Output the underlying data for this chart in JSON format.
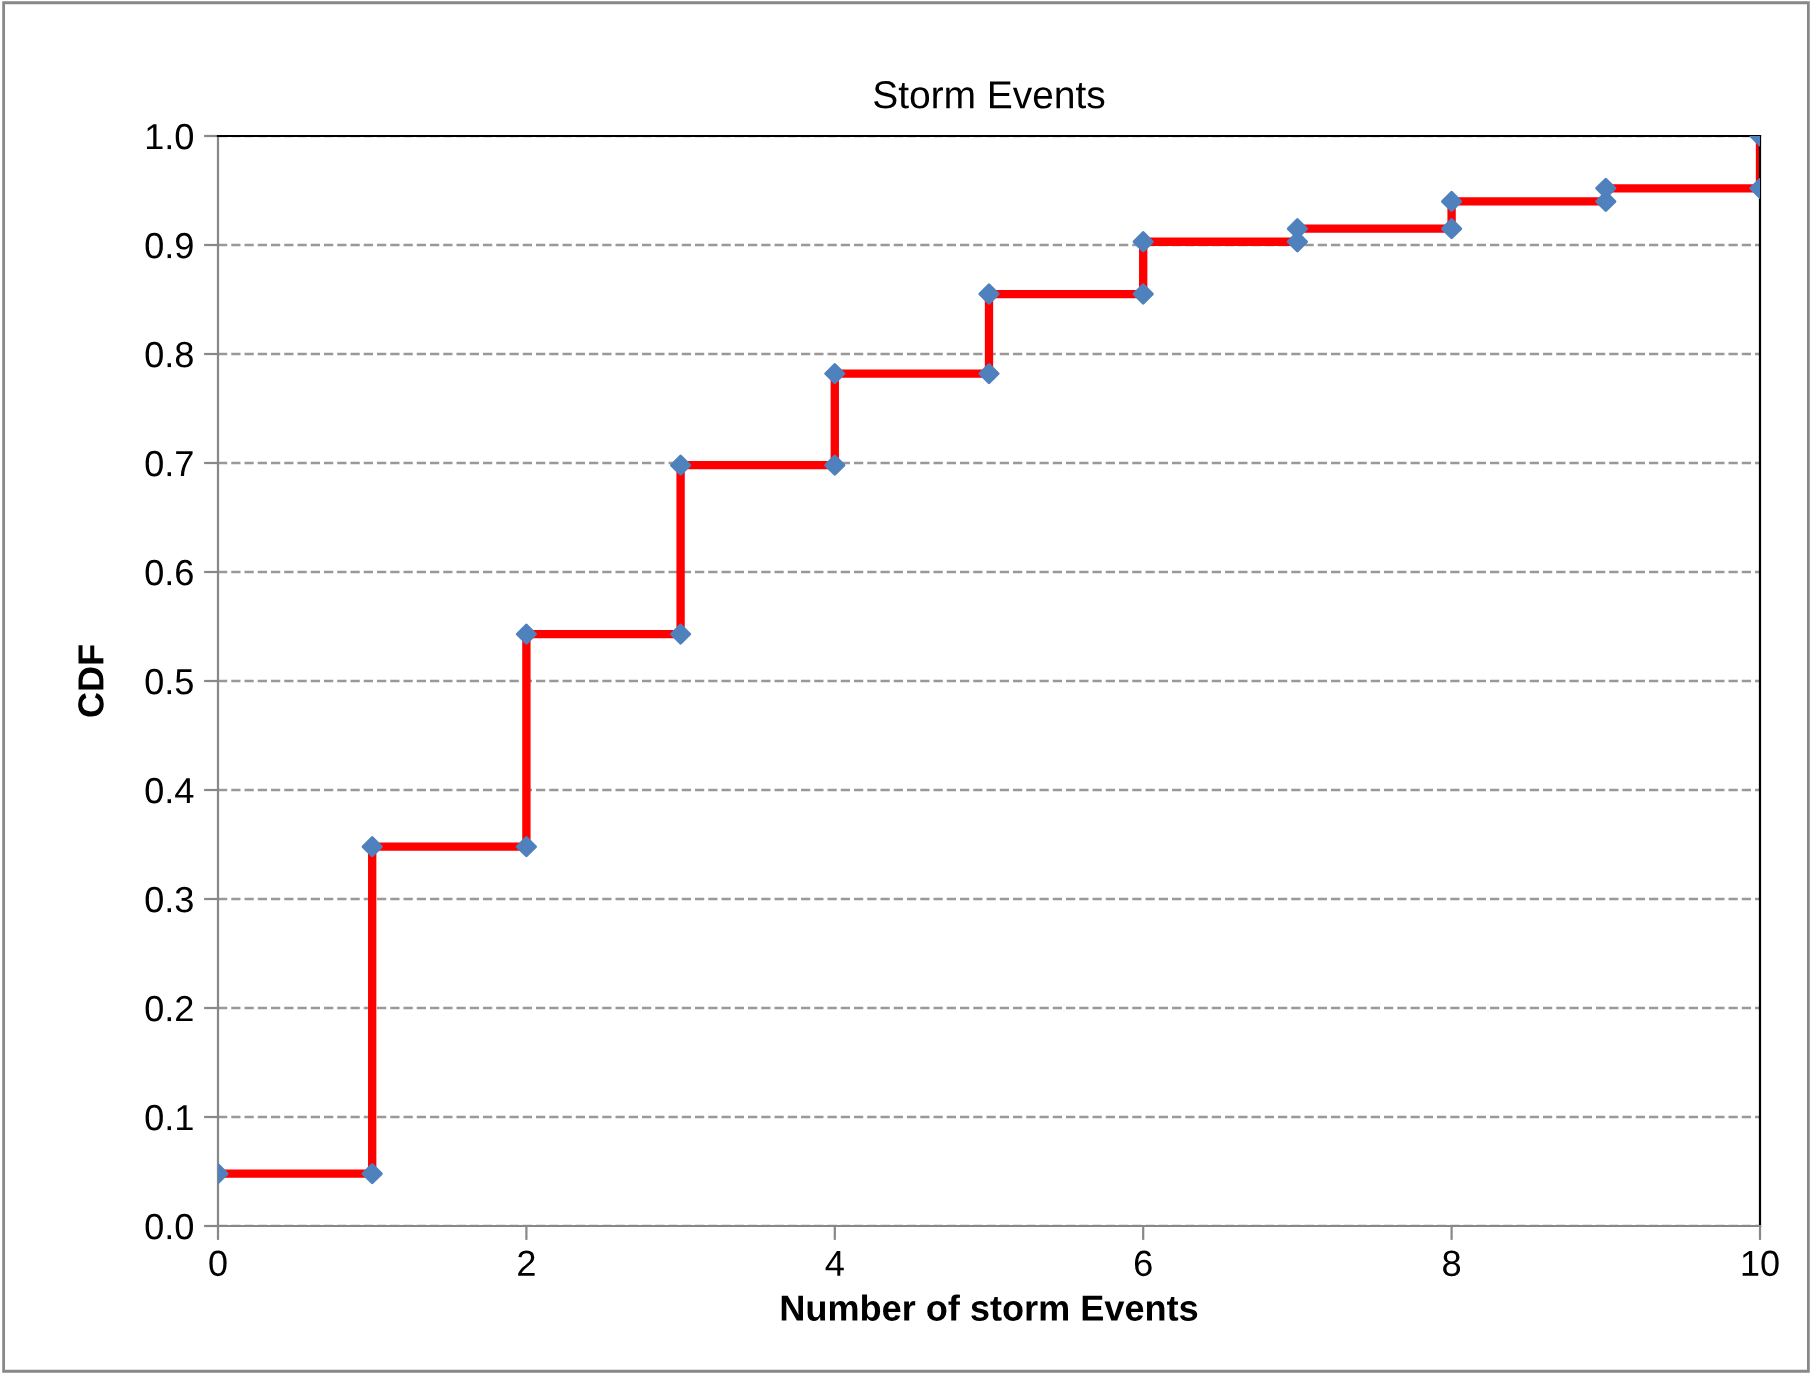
{
  "chart_data": {
    "type": "line",
    "title": "Storm Events",
    "xlabel": "Number of storm Events",
    "ylabel": "CDF",
    "xlim": [
      0,
      10
    ],
    "xticks": [
      0,
      2,
      4,
      6,
      8,
      10
    ],
    "ylim": [
      0,
      1
    ],
    "yticks": [
      {
        "value": 0,
        "label": "0.0"
      },
      {
        "value": 0.1,
        "label": "0.1"
      },
      {
        "value": 0.2,
        "label": "0.2"
      },
      {
        "value": 0.3,
        "label": "0.3"
      },
      {
        "value": 0.4,
        "label": "0.4"
      },
      {
        "value": 0.5,
        "label": "0.5"
      },
      {
        "value": 0.6,
        "label": "0.6"
      },
      {
        "value": 0.7,
        "label": "0.7"
      },
      {
        "value": 0.8,
        "label": "0.8"
      },
      {
        "value": 0.9,
        "label": "0.9"
      },
      {
        "value": 1.0,
        "label": "1.0"
      }
    ],
    "grid": "y",
    "legend": false,
    "series": [
      {
        "color": "#ff0000",
        "marker": "none",
        "line_style": "solid",
        "x": [
          0,
          1,
          1,
          2,
          2,
          3,
          3,
          4,
          4,
          5,
          5,
          6,
          6,
          7,
          7,
          8,
          8,
          9,
          9,
          10,
          10
        ],
        "values": [
          0.048,
          0.048,
          0.348,
          0.348,
          0.543,
          0.543,
          0.698,
          0.698,
          0.782,
          0.782,
          0.855,
          0.855,
          0.903,
          0.903,
          0.915,
          0.915,
          0.94,
          0.94,
          0.952,
          0.952,
          1.0
        ]
      },
      {
        "type": "scatter",
        "color": "#4f81bd",
        "marker": "diamond",
        "x": [
          0,
          1,
          1,
          2,
          2,
          3,
          3,
          4,
          4,
          5,
          5,
          6,
          6,
          7,
          7,
          8,
          8,
          9,
          9,
          10,
          10
        ],
        "values": [
          0.048,
          0.048,
          0.348,
          0.348,
          0.543,
          0.543,
          0.698,
          0.698,
          0.782,
          0.782,
          0.855,
          0.855,
          0.903,
          0.903,
          0.915,
          0.915,
          0.94,
          0.94,
          0.952,
          0.952,
          1.0
        ]
      }
    ]
  }
}
